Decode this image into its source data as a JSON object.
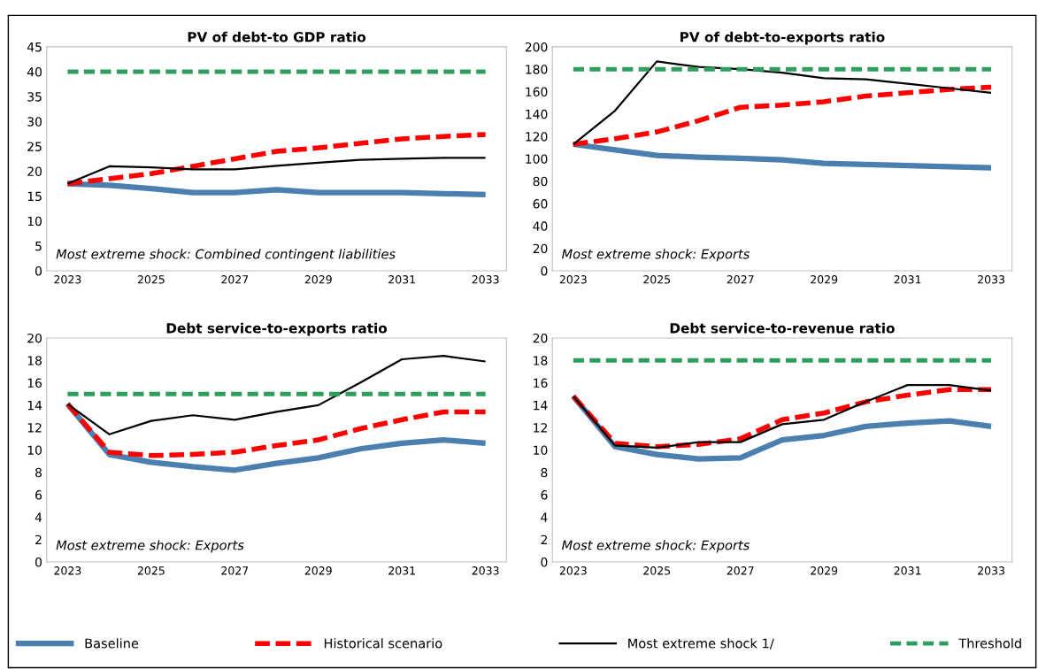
{
  "chart_data": [
    {
      "type": "line",
      "title": "PV of debt-to GDP ratio",
      "categories": [
        "2023",
        null,
        "2025",
        null,
        "2027",
        null,
        "2029",
        null,
        "2031",
        null,
        "2033"
      ],
      "ylim": [
        0,
        45
      ],
      "yticks": [
        0,
        5,
        10,
        15,
        20,
        25,
        30,
        35,
        40,
        45
      ],
      "grid": false,
      "legend": "bottom",
      "annotations": [
        "Most extreme shock: Combined contingent liabilities"
      ],
      "series": [
        {
          "name": "Baseline",
          "color": "#4a7fb0",
          "line_style": "solid",
          "values": [
            17.5,
            17.2,
            16.5,
            15.7,
            15.7,
            16.3,
            15.7,
            15.7,
            15.7,
            15.5,
            15.3
          ]
        },
        {
          "name": "Historical scenario",
          "color": "#ff0000",
          "line_style": "dashed",
          "values": [
            17.5,
            18.5,
            19.5,
            21,
            22.5,
            24,
            24.7,
            25.6,
            26.5,
            27,
            27.4
          ]
        },
        {
          "name": "Most extreme shock 1/",
          "color": "#000000",
          "line_style": "solid",
          "values": [
            17.5,
            21,
            20.8,
            20.4,
            20.4,
            21.1,
            21.7,
            22.3,
            22.5,
            22.7,
            22.7
          ]
        },
        {
          "name": "Threshold",
          "color": "#2e9e5e",
          "line_style": "dashed",
          "values": [
            40,
            40,
            40,
            40,
            40,
            40,
            40,
            40,
            40,
            40,
            40
          ]
        }
      ]
    },
    {
      "type": "line",
      "title": "PV of debt-to-exports ratio",
      "categories": [
        "2023",
        null,
        "2025",
        null,
        "2027",
        null,
        "2029",
        null,
        "2031",
        null,
        "2033"
      ],
      "ylim": [
        0,
        200
      ],
      "yticks": [
        0,
        20,
        40,
        60,
        80,
        100,
        120,
        140,
        160,
        180,
        200
      ],
      "grid": false,
      "annotations": [
        "Most extreme shock: Exports"
      ],
      "series": [
        {
          "color": "#4a7fb0",
          "line_style": "solid",
          "values": [
            113,
            108,
            103,
            101.5,
            100.5,
            99,
            96,
            95,
            94,
            93,
            92
          ]
        },
        {
          "color": "#ff0000",
          "line_style": "dashed",
          "values": [
            113,
            118,
            124,
            134,
            146,
            148,
            151,
            156,
            159,
            162,
            164
          ]
        },
        {
          "color": "#000000",
          "line_style": "solid",
          "values": [
            113,
            143,
            187,
            182,
            180,
            177,
            172,
            171,
            167,
            163,
            159
          ]
        },
        {
          "color": "#2e9e5e",
          "line_style": "dashed",
          "values": [
            180,
            180,
            180,
            180,
            180,
            180,
            180,
            180,
            180,
            180,
            180
          ]
        }
      ]
    },
    {
      "type": "line",
      "title": "Debt service-to-exports ratio",
      "categories": [
        "2023",
        null,
        "2025",
        null,
        "2027",
        null,
        "2029",
        null,
        "2031",
        null,
        "2033"
      ],
      "ylim": [
        0,
        20
      ],
      "yticks": [
        0,
        2,
        4,
        6,
        8,
        10,
        12,
        14,
        16,
        18,
        20
      ],
      "grid": false,
      "annotations": [
        "Most extreme shock: Exports"
      ],
      "series": [
        {
          "color": "#4a7fb0",
          "line_style": "solid",
          "values": [
            14.1,
            9.6,
            8.9,
            8.5,
            8.2,
            8.8,
            9.3,
            10.1,
            10.6,
            10.9,
            10.6
          ]
        },
        {
          "color": "#ff0000",
          "line_style": "dashed",
          "values": [
            14.1,
            9.8,
            9.5,
            9.6,
            9.8,
            10.4,
            10.9,
            11.9,
            12.7,
            13.4,
            13.4
          ]
        },
        {
          "color": "#000000",
          "line_style": "solid",
          "values": [
            14.1,
            11.4,
            12.6,
            13.1,
            12.7,
            13.4,
            14.0,
            16.0,
            18.1,
            18.4,
            17.9
          ]
        },
        {
          "color": "#2e9e5e",
          "line_style": "dashed",
          "values": [
            15,
            15,
            15,
            15,
            15,
            15,
            15,
            15,
            15,
            15,
            15
          ]
        }
      ]
    },
    {
      "type": "line",
      "title": "Debt service-to-revenue ratio",
      "categories": [
        "2023",
        null,
        "2025",
        null,
        "2027",
        null,
        "2029",
        null,
        "2031",
        null,
        "2033"
      ],
      "ylim": [
        0,
        20
      ],
      "yticks": [
        0,
        2,
        4,
        6,
        8,
        10,
        12,
        14,
        16,
        18,
        20
      ],
      "grid": false,
      "annotations": [
        "Most extreme shock: Exports"
      ],
      "series": [
        {
          "color": "#4a7fb0",
          "line_style": "solid",
          "values": [
            14.8,
            10.3,
            9.6,
            9.2,
            9.3,
            10.9,
            11.3,
            12.1,
            12.4,
            12.6,
            12.1
          ]
        },
        {
          "color": "#ff0000",
          "line_style": "dashed",
          "values": [
            14.8,
            10.6,
            10.3,
            10.5,
            11.0,
            12.7,
            13.3,
            14.3,
            14.9,
            15.4,
            15.4
          ]
        },
        {
          "color": "#000000",
          "line_style": "solid",
          "values": [
            14.8,
            10.4,
            10.2,
            10.7,
            10.7,
            12.3,
            12.7,
            14.3,
            15.8,
            15.8,
            15.3
          ]
        },
        {
          "color": "#2e9e5e",
          "line_style": "dashed",
          "values": [
            18,
            18,
            18,
            18,
            18,
            18,
            18,
            18,
            18,
            18,
            18
          ]
        }
      ]
    }
  ]
}
